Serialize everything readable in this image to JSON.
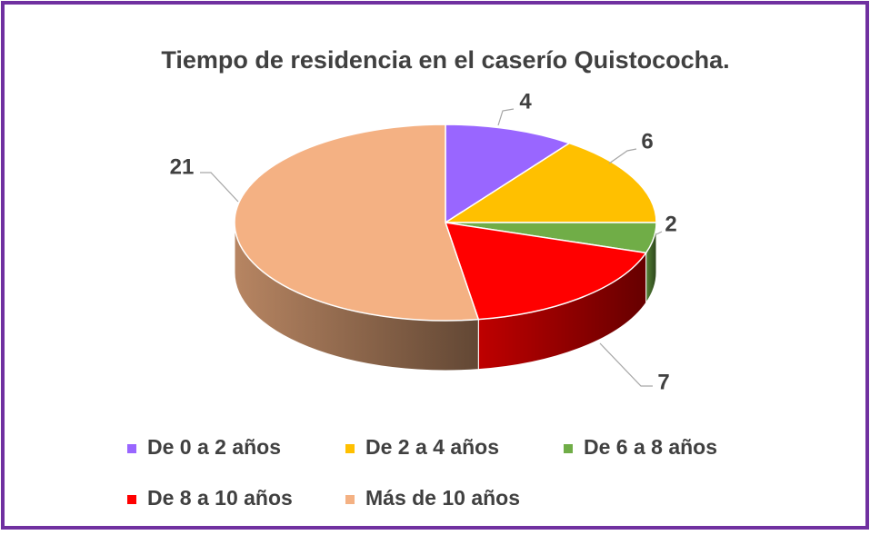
{
  "chart_data": {
    "type": "pie",
    "title": "Tiempo de residencia en el caserío Quistococha.",
    "categories": [
      "De 0 a 2 años",
      "De 2 a 4 años",
      "De 6 a 8 años",
      "De 8 a 10 años",
      "Más de 10 años"
    ],
    "values": [
      4,
      6,
      2,
      7,
      21
    ],
    "colors": [
      "#9966ff",
      "#ffc000",
      "#70ad47",
      "#ff0000",
      "#f4b183"
    ],
    "legend": "bottom"
  }
}
